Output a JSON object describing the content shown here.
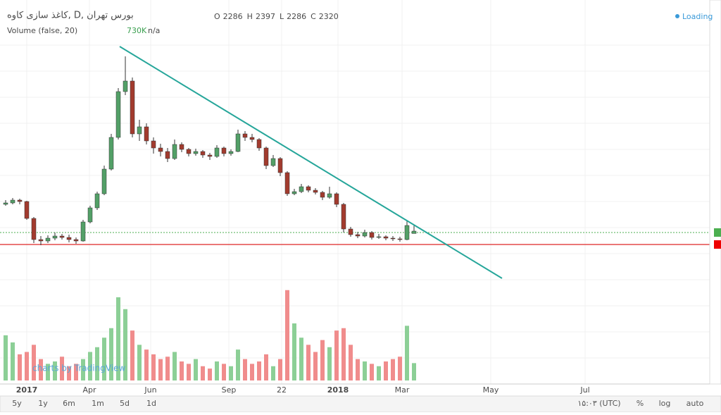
{
  "chart_data": {
    "type": "candlestick",
    "title": "کاغذ سازی کاوه, D, بورس تهران",
    "ohlc_labels": [
      "O",
      "H",
      "L",
      "C"
    ],
    "volume_title": "Volume (false, 20)",
    "volume_readout": "730K",
    "volume_ma_readout": "n/a",
    "status": "Loading",
    "watermark": "charts by TradingView",
    "x_labels": [
      "2017",
      "Apr",
      "Jun",
      "Sep",
      "22",
      "2018",
      "Mar",
      "May",
      "Jul"
    ],
    "ylim": [
      1600,
      5100
    ],
    "volume_lim": [
      0,
      4000000
    ],
    "colors": {
      "up": "#53a067",
      "down": "#a23b2e",
      "volume_up": "#8ccf96",
      "volume_down": "#f08c8c"
    },
    "candles": [
      [
        2700,
        2760,
        2680,
        2720
      ],
      [
        2720,
        2790,
        2700,
        2760
      ],
      [
        2760,
        2780,
        2700,
        2740
      ],
      [
        2740,
        2750,
        2480,
        2500
      ],
      [
        2500,
        2520,
        2150,
        2200
      ],
      [
        2200,
        2250,
        2120,
        2180
      ],
      [
        2180,
        2260,
        2150,
        2220
      ],
      [
        2220,
        2300,
        2190,
        2250
      ],
      [
        2250,
        2280,
        2200,
        2230
      ],
      [
        2230,
        2270,
        2160,
        2200
      ],
      [
        2200,
        2230,
        2140,
        2180
      ],
      [
        2180,
        2480,
        2170,
        2450
      ],
      [
        2450,
        2680,
        2430,
        2650
      ],
      [
        2650,
        2880,
        2620,
        2850
      ],
      [
        2850,
        3250,
        2830,
        3200
      ],
      [
        3200,
        3700,
        3180,
        3650
      ],
      [
        3650,
        4350,
        3620,
        4300
      ],
      [
        4300,
        4800,
        4250,
        4450
      ],
      [
        4450,
        4500,
        3650,
        3700
      ],
      [
        3700,
        3900,
        3600,
        3800
      ],
      [
        3800,
        3850,
        3550,
        3600
      ],
      [
        3600,
        3650,
        3420,
        3500
      ],
      [
        3500,
        3560,
        3380,
        3450
      ],
      [
        3450,
        3500,
        3300,
        3350
      ],
      [
        3350,
        3620,
        3330,
        3550
      ],
      [
        3550,
        3580,
        3440,
        3480
      ],
      [
        3480,
        3500,
        3380,
        3420
      ],
      [
        3420,
        3490,
        3390,
        3450
      ],
      [
        3450,
        3470,
        3360,
        3400
      ],
      [
        3400,
        3430,
        3330,
        3380
      ],
      [
        3380,
        3540,
        3360,
        3500
      ],
      [
        3500,
        3520,
        3380,
        3420
      ],
      [
        3420,
        3480,
        3390,
        3450
      ],
      [
        3450,
        3760,
        3440,
        3700
      ],
      [
        3700,
        3740,
        3600,
        3650
      ],
      [
        3650,
        3700,
        3580,
        3620
      ],
      [
        3620,
        3640,
        3460,
        3500
      ],
      [
        3500,
        3520,
        3200,
        3250
      ],
      [
        3250,
        3400,
        3230,
        3350
      ],
      [
        3350,
        3370,
        3100,
        3150
      ],
      [
        3150,
        3170,
        2820,
        2850
      ],
      [
        2850,
        2920,
        2830,
        2880
      ],
      [
        2880,
        2990,
        2860,
        2950
      ],
      [
        2950,
        2970,
        2870,
        2900
      ],
      [
        2900,
        2930,
        2840,
        2870
      ],
      [
        2870,
        2890,
        2760,
        2800
      ],
      [
        2800,
        2950,
        2780,
        2850
      ],
      [
        2850,
        2870,
        2660,
        2700
      ],
      [
        2700,
        2720,
        2300,
        2350
      ],
      [
        2350,
        2380,
        2240,
        2270
      ],
      [
        2270,
        2310,
        2220,
        2250
      ],
      [
        2250,
        2340,
        2230,
        2300
      ],
      [
        2300,
        2320,
        2200,
        2230
      ],
      [
        2230,
        2280,
        2210,
        2240
      ],
      [
        2240,
        2260,
        2190,
        2220
      ],
      [
        2220,
        2250,
        2180,
        2210
      ],
      [
        2210,
        2240,
        2170,
        2200
      ],
      [
        2200,
        2460,
        2190,
        2400
      ],
      [
        2286,
        2397,
        2286,
        2320
      ]
    ],
    "volume": [
      1900000,
      1600000,
      1100000,
      1200000,
      1500000,
      900000,
      700000,
      800000,
      1000000,
      600000,
      700000,
      900000,
      1200000,
      1400000,
      1800000,
      2200000,
      3500000,
      3000000,
      2100000,
      1500000,
      1300000,
      1100000,
      900000,
      1000000,
      1200000,
      800000,
      700000,
      900000,
      600000,
      500000,
      800000,
      700000,
      600000,
      1300000,
      900000,
      700000,
      800000,
      1100000,
      600000,
      900000,
      3800000,
      2400000,
      1800000,
      1500000,
      1200000,
      1700000,
      1400000,
      2100000,
      2200000,
      1500000,
      900000,
      800000,
      700000,
      600000,
      800000,
      900000,
      1000000,
      2300000,
      730000
    ]
  },
  "toolbar": {
    "ranges": [
      "5y",
      "1y",
      "6m",
      "1m",
      "5d",
      "1d"
    ],
    "clock": "۱۵:۰۳ (UTC)",
    "right": [
      "%",
      "log",
      "auto"
    ]
  }
}
